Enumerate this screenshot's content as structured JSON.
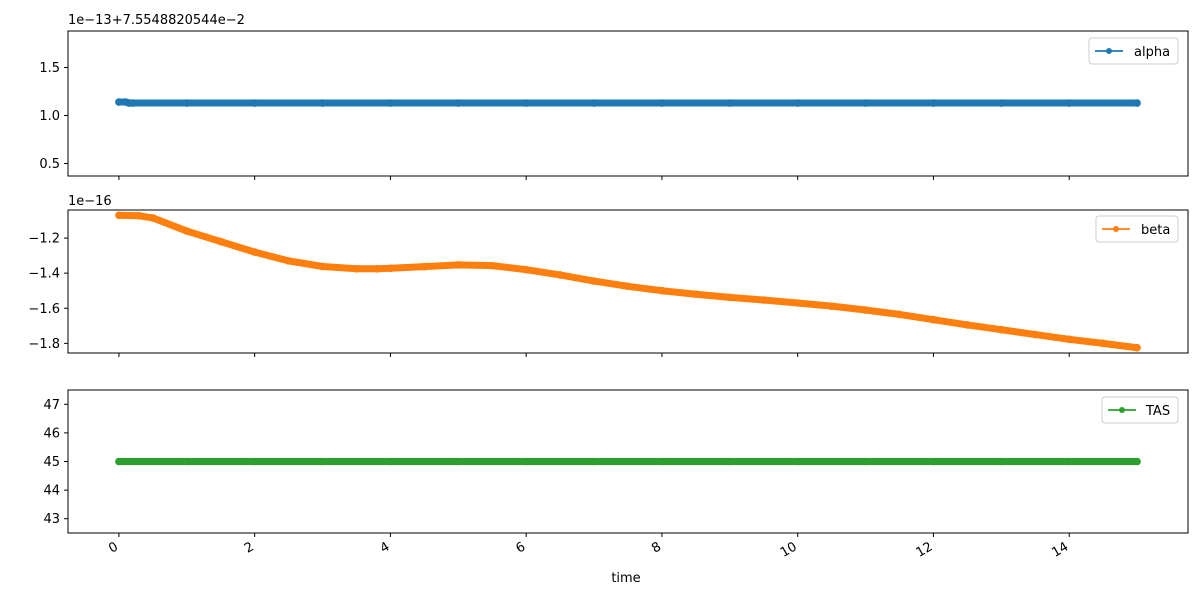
{
  "chart_data": {
    "type": "line",
    "shared_x": true,
    "xlabel": "time",
    "xlim": [
      -0.75,
      15.75
    ],
    "xticks": [
      0,
      2,
      4,
      6,
      8,
      10,
      12,
      14
    ],
    "xtick_labels": [
      "0",
      "2",
      "4",
      "6",
      "8",
      "10",
      "12",
      "14"
    ],
    "xtick_rotation_deg": 30,
    "panels": [
      {
        "series": [
          {
            "name": "alpha",
            "color": "#1f77b4",
            "marker": "dot",
            "x": [
              0,
              0.1,
              0.15,
              0.2,
              1,
              2,
              3,
              4,
              5,
              6,
              7,
              8,
              9,
              10,
              11,
              12,
              13,
              14,
              15
            ],
            "y": [
              1.14,
              1.14,
              1.13,
              1.13,
              1.13,
              1.13,
              1.13,
              1.13,
              1.13,
              1.13,
              1.13,
              1.13,
              1.13,
              1.13,
              1.13,
              1.13,
              1.13,
              1.13,
              1.13
            ]
          }
        ],
        "offset_label": "1e−13+7.5548820544e−2",
        "ylim": [
          0.37,
          1.88
        ],
        "yticks": [
          0.5,
          1.0,
          1.5
        ],
        "ytick_labels": [
          "0.5",
          "1.0",
          "1.5"
        ],
        "legend_position": "upper right"
      },
      {
        "series": [
          {
            "name": "beta",
            "color": "#ff7f0e",
            "marker": "dot",
            "x": [
              0,
              0.3,
              0.5,
              1.0,
              1.5,
              2.0,
              2.5,
              3.0,
              3.5,
              3.8,
              4.0,
              4.5,
              5.0,
              5.5,
              6.0,
              6.5,
              7.0,
              7.5,
              8.0,
              8.5,
              9.0,
              9.5,
              10.0,
              10.5,
              11.0,
              11.5,
              12.0,
              12.5,
              13.0,
              13.5,
              14.0,
              14.5,
              15.0
            ],
            "y": [
              -1.07,
              -1.073,
              -1.085,
              -1.16,
              -1.22,
              -1.28,
              -1.33,
              -1.362,
              -1.375,
              -1.375,
              -1.372,
              -1.363,
              -1.353,
              -1.357,
              -1.38,
              -1.41,
              -1.445,
              -1.475,
              -1.5,
              -1.52,
              -1.538,
              -1.553,
              -1.57,
              -1.588,
              -1.61,
              -1.635,
              -1.665,
              -1.695,
              -1.722,
              -1.75,
              -1.777,
              -1.8,
              -1.825
            ]
          }
        ],
        "offset_label": "1e−16",
        "ylim": [
          -1.855,
          -1.04
        ],
        "yticks": [
          -1.8,
          -1.6,
          -1.4,
          -1.2
        ],
        "ytick_labels": [
          "−1.8",
          "−1.6",
          "−1.4",
          "−1.2"
        ],
        "legend_position": "upper right"
      },
      {
        "series": [
          {
            "name": "TAS",
            "color": "#2ca02c",
            "marker": "dot",
            "x": [
              0,
              1,
              2,
              3,
              4,
              5,
              6,
              7,
              8,
              9,
              10,
              11,
              12,
              13,
              14,
              15
            ],
            "y": [
              45,
              45,
              45,
              45,
              45,
              45,
              45,
              45,
              45,
              45,
              45,
              45,
              45,
              45,
              45,
              45
            ]
          }
        ],
        "offset_label": "",
        "ylim": [
          42.5,
          47.5
        ],
        "yticks": [
          43,
          44,
          45,
          46,
          47
        ],
        "ytick_labels": [
          "43",
          "44",
          "45",
          "46",
          "47"
        ],
        "legend_position": "upper right"
      }
    ]
  }
}
